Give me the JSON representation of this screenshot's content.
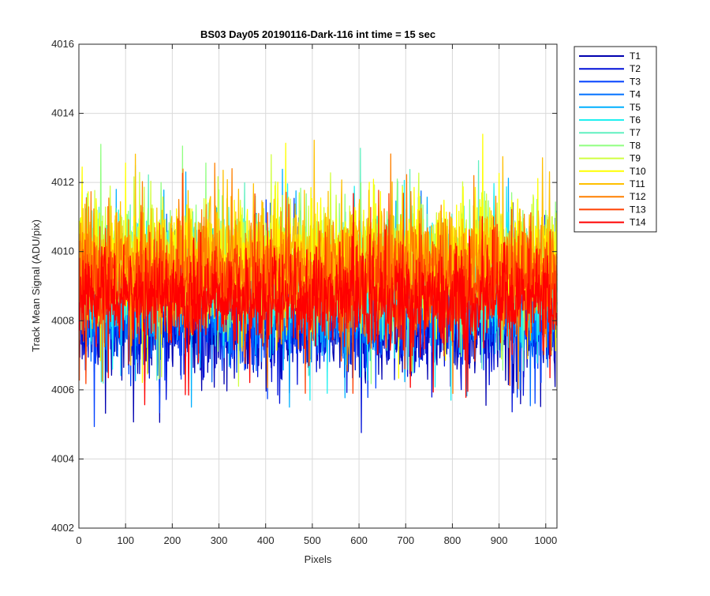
{
  "chart_data": {
    "type": "line",
    "title": "BS03 Day05 20190116-Dark-116 int time = 15 sec",
    "xlabel": "Pixels",
    "ylabel": "Track Mean Signal (ADU/pix)",
    "xlim": [
      0,
      1024
    ],
    "ylim": [
      4002,
      4016
    ],
    "x_ticks": [
      0,
      100,
      200,
      300,
      400,
      500,
      600,
      700,
      800,
      900,
      1000
    ],
    "y_ticks": [
      4002,
      4004,
      4006,
      4008,
      4010,
      4012,
      4014,
      4016
    ],
    "grid": true,
    "legend_position": "outside-right",
    "x_start": 1,
    "x_step": 1,
    "n_points": 1024,
    "series": [
      {
        "name": "T1",
        "color": "#0000b0",
        "mean": 4007.9,
        "spread": 0.75,
        "min": 4004.0,
        "max": 4012.1
      },
      {
        "name": "T2",
        "color": "#0010d8",
        "mean": 4008.1,
        "spread": 0.75,
        "min": 4004.4,
        "max": 4012.0
      },
      {
        "name": "T3",
        "color": "#0040ff",
        "mean": 4008.3,
        "spread": 0.75,
        "min": 4004.8,
        "max": 4012.2
      },
      {
        "name": "T4",
        "color": "#0070ff",
        "mean": 4008.5,
        "spread": 0.75,
        "min": 4005.2,
        "max": 4012.5
      },
      {
        "name": "T5",
        "color": "#00b0ff",
        "mean": 4008.8,
        "spread": 0.8,
        "min": 4005.5,
        "max": 4014.4
      },
      {
        "name": "T6",
        "color": "#20f0f0",
        "mean": 4009.1,
        "spread": 0.8,
        "min": 4005.7,
        "max": 4013.8
      },
      {
        "name": "T7",
        "color": "#60f0c0",
        "mean": 4009.4,
        "spread": 0.8,
        "min": 4005.9,
        "max": 4013.9
      },
      {
        "name": "T8",
        "color": "#90ff80",
        "mean": 4009.6,
        "spread": 0.8,
        "min": 4006.0,
        "max": 4014.3
      },
      {
        "name": "T9",
        "color": "#d0ff40",
        "mean": 4009.7,
        "spread": 0.8,
        "min": 4006.1,
        "max": 4014.1
      },
      {
        "name": "T10",
        "color": "#ffff00",
        "mean": 4009.8,
        "spread": 0.8,
        "min": 4006.1,
        "max": 4014.1
      },
      {
        "name": "T11",
        "color": "#ffc000",
        "mean": 4009.7,
        "spread": 0.8,
        "min": 4005.9,
        "max": 4014.3
      },
      {
        "name": "T12",
        "color": "#ff8000",
        "mean": 4009.4,
        "spread": 0.8,
        "min": 4005.8,
        "max": 4013.7
      },
      {
        "name": "T13",
        "color": "#ff4000",
        "mean": 4009.0,
        "spread": 0.75,
        "min": 4005.9,
        "max": 4013.3
      },
      {
        "name": "T14",
        "color": "#ff0000",
        "mean": 4008.6,
        "spread": 0.7,
        "min": 4004.8,
        "max": 4012.7
      }
    ]
  }
}
